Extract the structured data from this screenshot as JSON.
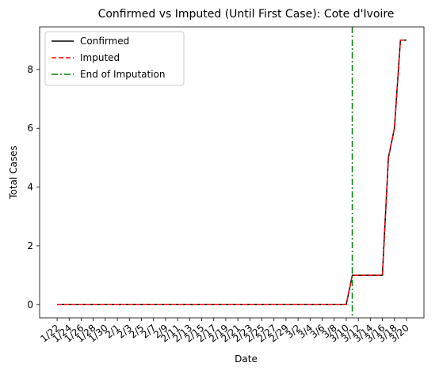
{
  "chart_data": {
    "type": "line",
    "title": "Confirmed vs Imputed (Until First Case): Cote d'Ivoire",
    "xlabel": "Date",
    "ylabel": "Total Cases",
    "x": [
      "1/22",
      "1/23",
      "1/24",
      "1/25",
      "1/26",
      "1/27",
      "1/28",
      "1/29",
      "1/30",
      "1/31",
      "2/1",
      "2/2",
      "2/3",
      "2/4",
      "2/5",
      "2/6",
      "2/7",
      "2/8",
      "2/9",
      "2/10",
      "2/11",
      "2/12",
      "2/13",
      "2/14",
      "2/15",
      "2/16",
      "2/17",
      "2/18",
      "2/19",
      "2/20",
      "2/21",
      "2/22",
      "2/23",
      "2/24",
      "2/25",
      "2/26",
      "2/27",
      "2/28",
      "2/29",
      "3/1",
      "3/2",
      "3/3",
      "3/4",
      "3/5",
      "3/6",
      "3/7",
      "3/8",
      "3/9",
      "3/10",
      "3/11",
      "3/12",
      "3/13",
      "3/14",
      "3/15",
      "3/16",
      "3/17",
      "3/18",
      "3/19",
      "3/20"
    ],
    "tick_labels": [
      "1/22",
      "1/24",
      "1/26",
      "1/28",
      "1/30",
      "2/1",
      "2/3",
      "2/5",
      "2/7",
      "2/9",
      "2/11",
      "2/13",
      "2/15",
      "2/17",
      "2/19",
      "2/21",
      "2/23",
      "2/25",
      "2/27",
      "2/29",
      "3/2",
      "3/4",
      "3/6",
      "3/8",
      "3/10",
      "3/12",
      "3/14",
      "3/16",
      "3/18",
      "3/20"
    ],
    "series": [
      {
        "name": "Confirmed",
        "color": "#000000",
        "style": "solid",
        "values": [
          0,
          0,
          0,
          0,
          0,
          0,
          0,
          0,
          0,
          0,
          0,
          0,
          0,
          0,
          0,
          0,
          0,
          0,
          0,
          0,
          0,
          0,
          0,
          0,
          0,
          0,
          0,
          0,
          0,
          0,
          0,
          0,
          0,
          0,
          0,
          0,
          0,
          0,
          0,
          0,
          0,
          0,
          0,
          0,
          0,
          0,
          0,
          0,
          0,
          1,
          1,
          1,
          1,
          1,
          1,
          5,
          6,
          9,
          9
        ]
      },
      {
        "name": "Imputed",
        "color": "#ff0000",
        "style": "dashed",
        "values": [
          0,
          0,
          0,
          0,
          0,
          0,
          0,
          0,
          0,
          0,
          0,
          0,
          0,
          0,
          0,
          0,
          0,
          0,
          0,
          0,
          0,
          0,
          0,
          0,
          0,
          0,
          0,
          0,
          0,
          0,
          0,
          0,
          0,
          0,
          0,
          0,
          0,
          0,
          0,
          0,
          0,
          0,
          0,
          0,
          0,
          0,
          0,
          0,
          0,
          1,
          1,
          1,
          1,
          1,
          1,
          5,
          6,
          9,
          9
        ]
      }
    ],
    "vline": {
      "name": "End of Imputation",
      "x": "3/11",
      "color": "#008000",
      "style": "dashdot"
    },
    "yticks": [
      0,
      2,
      4,
      6,
      8
    ],
    "ylim": [
      -0.45,
      9.45
    ],
    "legend": "top-left",
    "grid": false
  }
}
